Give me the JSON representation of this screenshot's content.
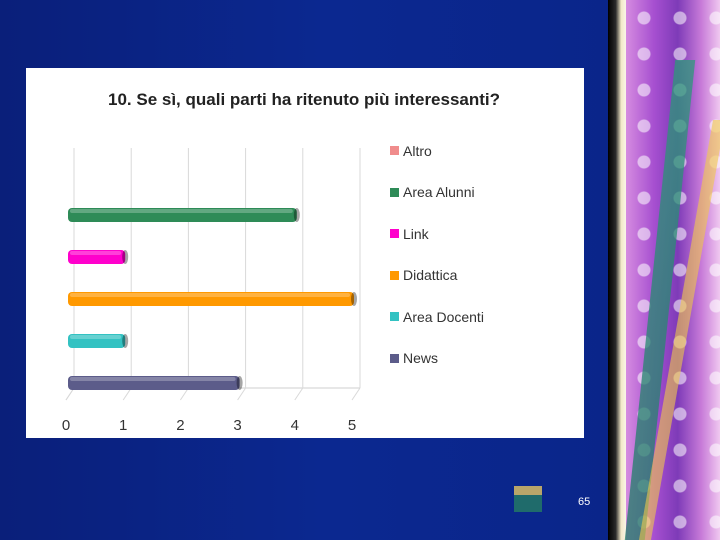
{
  "slide": {
    "page_number": "65"
  },
  "chart_data": {
    "type": "bar",
    "orientation": "horizontal",
    "title": "10. Se sì, quali parti ha ritenuto più interessanti?",
    "categories": [
      "Altro",
      "Area Alunni",
      "Link",
      "Didattica",
      "Area Docenti",
      "News"
    ],
    "values": [
      0,
      4,
      1,
      5,
      1,
      3
    ],
    "colors": [
      "#f08c8c",
      "#2e8b57",
      "#ff00cc",
      "#ff9900",
      "#33c2c2",
      "#5c5c8a"
    ],
    "xlim": [
      0,
      5
    ],
    "xticks": [
      "0",
      "1",
      "2",
      "3",
      "4",
      "5"
    ],
    "grid": true,
    "legend_position": "right",
    "legend": [
      "Altro",
      "Area Alunni",
      "Link",
      "Didattica",
      "Area Docenti",
      "News"
    ]
  }
}
